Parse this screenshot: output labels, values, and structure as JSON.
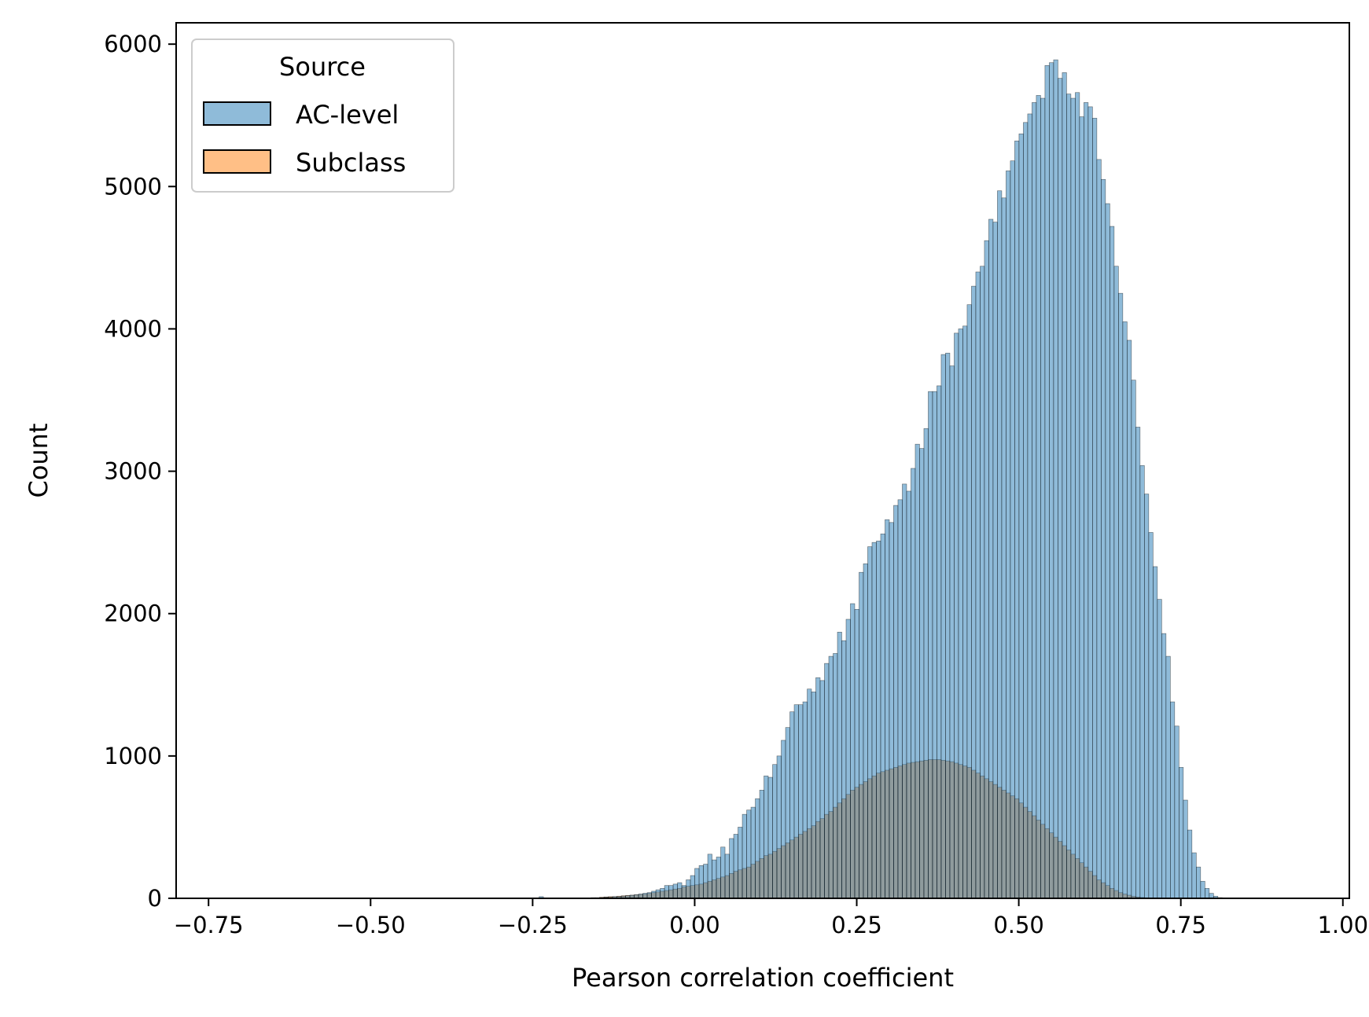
{
  "chart_data": {
    "type": "histogram",
    "xlabel": "Pearson correlation coefficient",
    "ylabel": "Count",
    "xlim": [
      -0.8,
      1.01
    ],
    "ylim": [
      0,
      6150
    ],
    "xticks": [
      -0.75,
      -0.5,
      -0.25,
      0.0,
      0.25,
      0.5,
      0.75,
      1.0
    ],
    "xtick_labels": [
      "−0.75",
      "−0.50",
      "−0.25",
      "0.00",
      "0.25",
      "0.50",
      "0.75",
      "1.00"
    ],
    "yticks": [
      0,
      1000,
      2000,
      3000,
      4000,
      5000,
      6000
    ],
    "ytick_labels": [
      "0",
      "1000",
      "2000",
      "3000",
      "4000",
      "5000",
      "6000"
    ],
    "bin_start": -0.24,
    "bin_width": 0.00667,
    "legend": {
      "title": "Source",
      "placement": "upper left"
    },
    "series": [
      {
        "name": "AC-level",
        "color": "#1f77b4",
        "values": [
          12,
          0,
          0,
          0,
          0,
          0,
          0,
          0,
          0,
          0,
          0,
          0,
          2,
          3,
          5,
          8,
          8,
          12,
          12,
          15,
          18,
          22,
          25,
          30,
          35,
          40,
          50,
          60,
          70,
          90,
          90,
          100,
          110,
          90,
          130,
          160,
          210,
          230,
          240,
          310,
          270,
          290,
          360,
          310,
          420,
          450,
          500,
          590,
          620,
          640,
          700,
          760,
          860,
          850,
          940,
          1000,
          1110,
          1200,
          1310,
          1360,
          1360,
          1380,
          1470,
          1450,
          1550,
          1530,
          1650,
          1700,
          1720,
          1870,
          1810,
          1960,
          2070,
          2030,
          2290,
          2350,
          2470,
          2500,
          2510,
          2560,
          2660,
          2640,
          2760,
          2800,
          2910,
          2860,
          3020,
          3190,
          3160,
          3300,
          3560,
          3560,
          3600,
          3820,
          3830,
          3740,
          3970,
          4000,
          4020,
          4170,
          4300,
          4400,
          4440,
          4620,
          4770,
          4750,
          4970,
          4920,
          5110,
          5180,
          5320,
          5370,
          5450,
          5510,
          5590,
          5640,
          5620,
          5850,
          5870,
          5890,
          5760,
          5800,
          5650,
          5620,
          5660,
          5490,
          5590,
          5560,
          5480,
          5190,
          5050,
          4880,
          4720,
          4440,
          4250,
          4050,
          3920,
          3640,
          3310,
          3040,
          2840,
          2570,
          2330,
          2100,
          1860,
          1700,
          1380,
          1210,
          920,
          690,
          480,
          320,
          220,
          120,
          70,
          35,
          15,
          5
        ],
        "_bars_note": ""
      },
      {
        "name": "Subclass",
        "color": "#ff7f0e",
        "values": [
          0,
          0,
          0,
          0,
          0,
          0,
          0,
          0,
          0,
          0,
          0,
          0,
          5,
          5,
          8,
          10,
          12,
          12,
          15,
          18,
          20,
          22,
          25,
          28,
          30,
          35,
          40,
          45,
          50,
          55,
          60,
          65,
          70,
          80,
          85,
          90,
          95,
          100,
          110,
          120,
          130,
          140,
          150,
          160,
          175,
          190,
          200,
          210,
          220,
          240,
          260,
          280,
          300,
          310,
          330,
          350,
          370,
          390,
          410,
          430,
          450,
          470,
          490,
          510,
          540,
          560,
          590,
          610,
          640,
          670,
          700,
          730,
          760,
          780,
          800,
          820,
          840,
          860,
          880,
          890,
          900,
          910,
          920,
          930,
          940,
          950,
          955,
          960,
          965,
          970,
          975,
          975,
          975,
          970,
          965,
          960,
          950,
          940,
          930,
          920,
          900,
          880,
          860,
          840,
          820,
          800,
          780,
          760,
          740,
          720,
          700,
          670,
          640,
          610,
          580,
          550,
          520,
          490,
          460,
          430,
          400,
          370,
          340,
          310,
          280,
          250,
          220,
          190,
          160,
          130,
          110,
          90,
          70,
          55,
          40,
          30,
          22,
          15,
          10,
          6,
          3,
          2,
          1,
          0,
          0,
          0,
          0,
          0,
          0,
          0,
          0,
          0,
          0,
          0,
          0,
          0,
          0,
          0,
          0,
          0,
          0,
          0,
          0,
          0,
          0
        ]
      }
    ]
  }
}
